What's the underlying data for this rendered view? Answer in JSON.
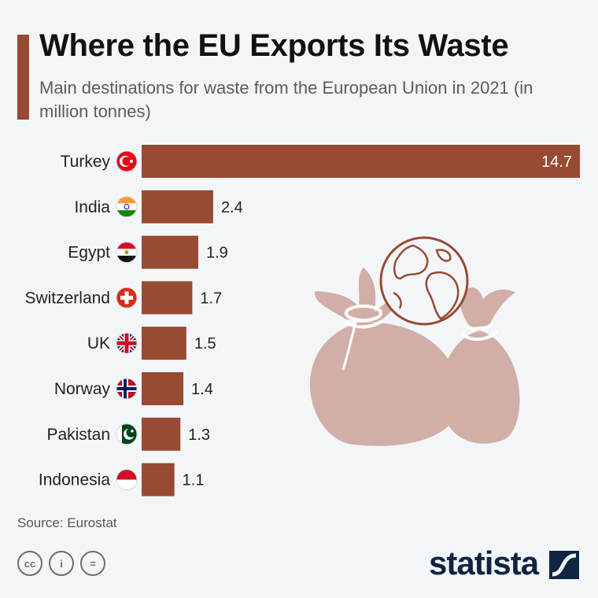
{
  "header": {
    "title": "Where the EU Exports Its Waste",
    "subtitle": "Main destinations for waste from the European Union in 2021 (in million tonnes)"
  },
  "chart_data": {
    "type": "bar",
    "orientation": "horizontal",
    "categories": [
      "Turkey",
      "India",
      "Egypt",
      "Switzerland",
      "UK",
      "Norway",
      "Pakistan",
      "Indonesia"
    ],
    "values": [
      14.7,
      2.4,
      1.9,
      1.7,
      1.5,
      1.4,
      1.3,
      1.1
    ],
    "value_labels": [
      "14.7",
      "2.4",
      "1.9",
      "1.7",
      "1.5",
      "1.4",
      "1.3",
      "1.1"
    ],
    "xlim": [
      0,
      14.7
    ],
    "grid": false,
    "legend": "none",
    "bar_color": "#974b33",
    "flag_icons": [
      "turkey-flag-icon",
      "india-flag-icon",
      "egypt-flag-icon",
      "switzerland-flag-icon",
      "uk-flag-icon",
      "norway-flag-icon",
      "pakistan-flag-icon",
      "indonesia-flag-icon"
    ]
  },
  "illustration": {
    "icons": [
      "waste-bags-globe-icon"
    ],
    "colors": {
      "bag": "#d2aea8",
      "tie": "#ffffff",
      "globe": "#974b33"
    }
  },
  "footer": {
    "source": "Source: Eurostat",
    "brand": "statista",
    "license_icons": [
      "cc-icon",
      "by-icon",
      "nd-icon"
    ],
    "license_labels": [
      "cc",
      "i",
      "="
    ]
  },
  "colors": {
    "accent": "#974b33",
    "background": "#f3f6f8",
    "brand": "#0f2542"
  }
}
